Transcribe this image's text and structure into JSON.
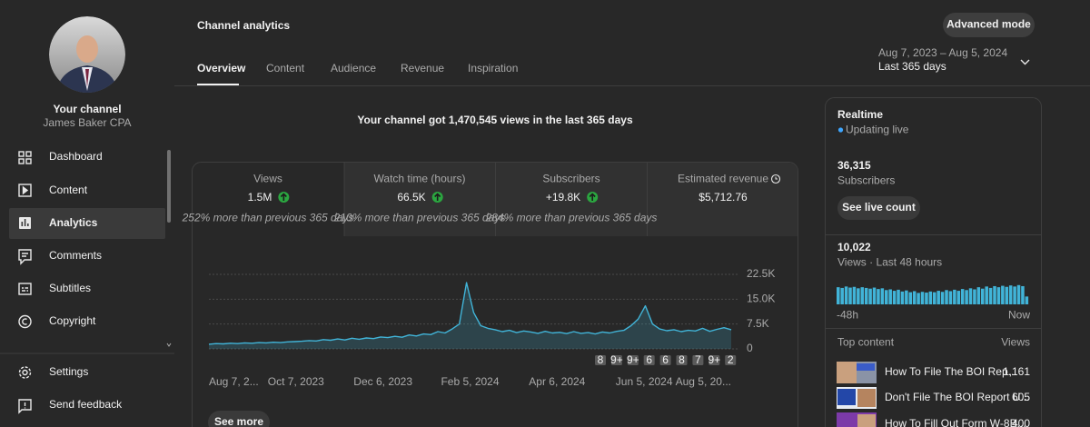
{
  "sidebar": {
    "channel_label": "Your channel",
    "channel_name": "James Baker CPA",
    "nav": [
      "Dashboard",
      "Content",
      "Analytics",
      "Comments",
      "Subtitles",
      "Copyright"
    ],
    "footer_nav": [
      "Settings",
      "Send feedback"
    ]
  },
  "header": {
    "title": "Channel analytics",
    "tabs": [
      "Overview",
      "Content",
      "Audience",
      "Revenue",
      "Inspiration"
    ],
    "advanced_mode": "Advanced mode",
    "date_range": "Aug 7, 2023 – Aug 5, 2024",
    "date_period": "Last 365 days"
  },
  "headline": "Your channel got 1,470,545 views in the last 365 days",
  "metrics": [
    {
      "label": "Views",
      "value": "1.5M",
      "change": "252% more than previous 365 days"
    },
    {
      "label": "Watch time (hours)",
      "value": "66.5K",
      "change": "210% more than previous 365 days"
    },
    {
      "label": "Subscribers",
      "value": "+19.8K",
      "change": "284% more than previous 365 days"
    },
    {
      "label": "Estimated revenue",
      "value": "$5,712.76"
    }
  ],
  "see_more": "See more",
  "chart_data": [
    {
      "type": "line",
      "color": "#41b4d8",
      "values": [
        1400,
        1600,
        1500,
        1700,
        1600,
        1800,
        1700,
        1900,
        1800,
        2000,
        1900,
        2100,
        2200,
        2300,
        2500,
        2400,
        2800,
        2600,
        3000,
        2700,
        3200,
        2900,
        3300,
        3100,
        3600,
        3400,
        3800,
        3500,
        4200,
        3900,
        4500,
        4300,
        5200,
        4800,
        6000,
        7500,
        20000,
        11000,
        7000,
        6200,
        5800,
        5200,
        5600,
        4900,
        5400,
        5100,
        4700,
        5300,
        4800,
        5000,
        4600,
        5200,
        4700,
        4900,
        4500,
        5100,
        4800,
        5300,
        5600,
        7000,
        9000,
        13000,
        7500,
        6000,
        5500,
        5800,
        5200,
        5600,
        5400,
        6200,
        5300,
        5900,
        6400,
        5800
      ],
      "ylim": [
        0,
        22500
      ],
      "yticks": [
        0,
        {
          "value": 7500,
          "label": "7.5K"
        },
        {
          "value": 15000,
          "label": "15.0K"
        },
        {
          "value": 22500,
          "label": "22.5K"
        }
      ],
      "xtick_labels": [
        "Aug 7, 2...",
        "Oct 7, 2023",
        "Dec 6, 2023",
        "Feb 5, 2024",
        "Apr 6, 2024",
        "Jun 5, 2024",
        "Aug 5, 20..."
      ],
      "annotations": [
        "8",
        "9+",
        "9+",
        "6",
        "6",
        "8",
        "7",
        "9+",
        "2"
      ],
      "grid": true
    },
    {
      "type": "bar",
      "color": "#41b4d8",
      "values": [
        240,
        230,
        250,
        235,
        245,
        225,
        240,
        230,
        220,
        235,
        215,
        225,
        200,
        210,
        190,
        205,
        180,
        195,
        170,
        185,
        160,
        175,
        165,
        180,
        170,
        190,
        175,
        200,
        185,
        205,
        190,
        215,
        200,
        225,
        210,
        240,
        220,
        250,
        230,
        255,
        240,
        260,
        245,
        265,
        250,
        270,
        255,
        110
      ],
      "ylim": [
        0,
        280
      ],
      "x_labels": [
        "-48h",
        "Now"
      ]
    }
  ],
  "realtime": {
    "title": "Realtime",
    "status": "Updating live",
    "subscribers": "36,315",
    "subscribers_label": "Subscribers",
    "live_button": "See live count",
    "views": "10,022",
    "views_label": "Views · Last 48 hours",
    "top_content_label": "Top content",
    "top_views_label": "Views",
    "top_content": [
      {
        "title": "How To File The BOI Rep...",
        "views": "1,161"
      },
      {
        "title": "Don't File The BOI Report U...",
        "views": "605"
      },
      {
        "title": "How To Fill Out Form W-8B...",
        "views": "400"
      }
    ]
  }
}
